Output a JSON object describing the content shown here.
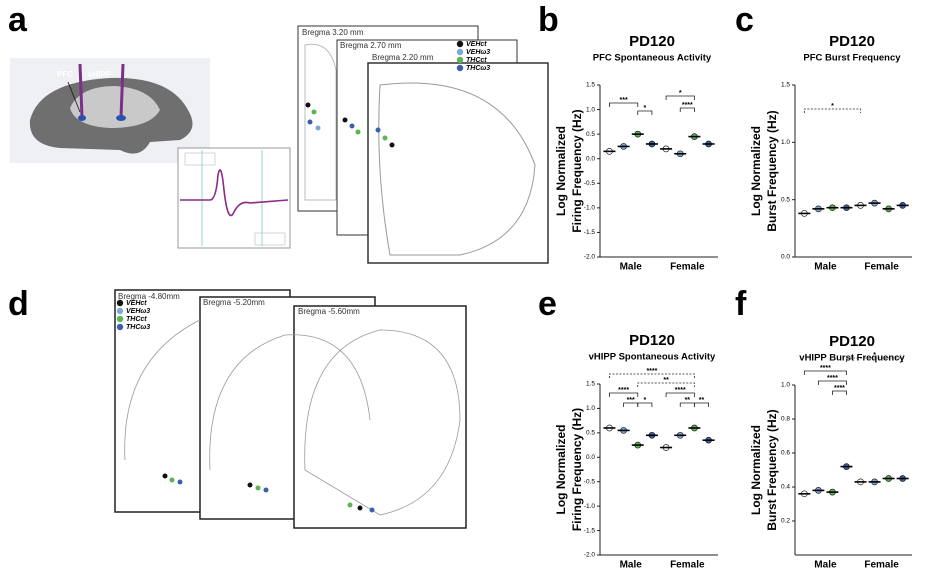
{
  "panels": [
    "a",
    "b",
    "c",
    "d",
    "e",
    "f"
  ],
  "diagram": {
    "regions": [
      "PFC",
      "vHIPP"
    ],
    "bregma_top": [
      "Bregma 3.20 mm",
      "Bregma 2.70 mm",
      "Bregma 2.20 mm"
    ],
    "bregma_bottom": [
      "Bregma -4.80mm",
      "Bregma -5.20mm",
      "Bregma -5.60mm"
    ]
  },
  "chart_data": [
    {
      "type": "strip",
      "title": "PD120",
      "subtitle": "PFC Spontaneous Activity",
      "ylabel": [
        "Log Normalized",
        "Firing Frequency (Hz)"
      ],
      "categories": [
        "Male",
        "Female"
      ],
      "series": [
        {
          "name": "VEHct",
          "color": "#111111",
          "values": [
            0.15,
            0.2
          ]
        },
        {
          "name": "VEHω3",
          "color": "#7da7d9",
          "values": [
            0.25,
            0.1
          ]
        },
        {
          "name": "THCct",
          "color": "#5bb553",
          "values": [
            0.5,
            0.45
          ]
        },
        {
          "name": "THCω3",
          "color": "#3b5fa8",
          "values": [
            0.3,
            0.3
          ]
        }
      ],
      "ylim": [
        -2,
        1.5
      ],
      "yticks": [
        {
          "value": -2,
          "label": "-2.0"
        },
        {
          "value": -1.5,
          "label": "-1.5"
        },
        {
          "value": -1,
          "label": "-1.0"
        },
        {
          "value": -0.5,
          "label": "-0.5"
        },
        {
          "value": 0,
          "label": "0.0"
        },
        {
          "value": 0.5,
          "label": "0.5"
        },
        {
          "value": 1,
          "label": "1.0"
        },
        {
          "value": 1.5,
          "label": "1.5"
        }
      ],
      "annotations": [
        "***",
        "*",
        "*",
        "****"
      ]
    },
    {
      "type": "strip",
      "title": "PD120",
      "subtitle": "PFC Burst Frequency",
      "ylabel": [
        "Log Normalized",
        "Burst Frequency (Hz)"
      ],
      "categories": [
        "Male",
        "Female"
      ],
      "series": [
        {
          "name": "VEHct",
          "color": "#111111",
          "values": [
            0.38,
            0.45
          ]
        },
        {
          "name": "VEHω3",
          "color": "#7da7d9",
          "values": [
            0.42,
            0.47
          ]
        },
        {
          "name": "THCct",
          "color": "#5bb553",
          "values": [
            0.43,
            0.42
          ]
        },
        {
          "name": "THCω3",
          "color": "#3b5fa8",
          "values": [
            0.43,
            0.45
          ]
        }
      ],
      "ylim": [
        0,
        1.5
      ],
      "yticks": [
        {
          "value": 0,
          "label": "0.0"
        },
        0.5,
        {
          "value": 1,
          "label": "1.0"
        },
        1.5
      ],
      "annotations": [
        "*"
      ]
    },
    {
      "type": "strip",
      "title": "PD120",
      "subtitle": "vHIPP Spontaneous Activity",
      "ylabel": [
        "Log Normalized",
        "Firing Frequency (Hz)"
      ],
      "categories": [
        "Male",
        "Female"
      ],
      "series": [
        {
          "name": "VEHct",
          "color": "#111111",
          "values": [
            0.6,
            0.2
          ]
        },
        {
          "name": "VEHω3",
          "color": "#7da7d9",
          "values": [
            0.55,
            0.45
          ]
        },
        {
          "name": "THCct",
          "color": "#5bb553",
          "values": [
            0.25,
            0.6
          ]
        },
        {
          "name": "THCω3",
          "color": "#3b5fa8",
          "values": [
            0.45,
            0.35
          ]
        }
      ],
      "ylim": [
        -2,
        1.5
      ],
      "yticks": [
        {
          "value": -2,
          "label": "-2.0"
        },
        {
          "value": -1.5,
          "label": "-1.5"
        },
        {
          "value": -1,
          "label": "-1.0"
        },
        {
          "value": -0.5,
          "label": "-0.5"
        },
        {
          "value": 0,
          "label": "0.0"
        },
        {
          "value": 0.5,
          "label": "0.5"
        },
        {
          "value": 1,
          "label": "1.0"
        },
        {
          "value": 1.5,
          "label": "1.5"
        }
      ],
      "annotations": [
        "****",
        "**",
        "****",
        "***",
        "*",
        "****",
        "**",
        "**"
      ]
    },
    {
      "type": "strip",
      "title": "PD120",
      "subtitle": "vHIPP Burst Frequency",
      "ylabel": [
        "Log Normalized",
        "Burst Frequency (Hz)"
      ],
      "categories": [
        "Male",
        "Female"
      ],
      "series": [
        {
          "name": "VEHct",
          "color": "#111111",
          "values": [
            0.36,
            0.43
          ]
        },
        {
          "name": "VEHω3",
          "color": "#7da7d9",
          "values": [
            0.38,
            0.43
          ]
        },
        {
          "name": "THCct",
          "color": "#5bb553",
          "values": [
            0.37,
            0.45
          ]
        },
        {
          "name": "THCω3",
          "color": "#3b5fa8",
          "values": [
            0.52,
            0.45
          ]
        }
      ],
      "ylim": [
        0,
        1
      ],
      "yticks": [
        0.2,
        0.4,
        0.6,
        0.8,
        {
          "value": 1,
          "label": "1.0"
        }
      ],
      "annotations": [
        "*",
        "****",
        "****",
        "****"
      ]
    }
  ]
}
